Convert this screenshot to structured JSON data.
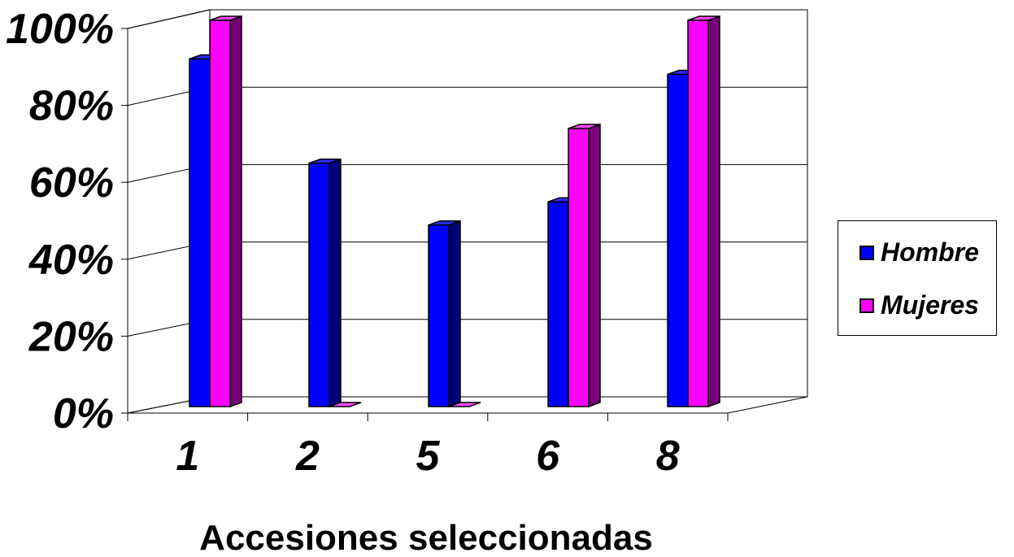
{
  "chart_data": {
    "type": "bar",
    "categories": [
      "1",
      "2",
      "5",
      "6",
      "8"
    ],
    "series": [
      {
        "name": "Hombre",
        "values": [
          90,
          63,
          47,
          53,
          86
        ]
      },
      {
        "name": "Mujeres",
        "values": [
          100,
          0,
          0,
          72,
          100
        ]
      }
    ],
    "ylim": [
      0,
      100
    ],
    "yticks": [
      "0%",
      "20%",
      "40%",
      "60%",
      "80%",
      "100%"
    ],
    "xlabel": "Accesiones seleccionadas",
    "ylabel": "",
    "grid": true,
    "legend_position": "right",
    "three_d": true
  },
  "colors": {
    "Hombre": {
      "front": "#0000FF",
      "side": "#00007A",
      "top": "#2B2BFF"
    },
    "Mujeres": {
      "front": "#FF00FF",
      "side": "#7A007A",
      "top": "#FF4DFF"
    },
    "grid": "#000000",
    "background": "#FFFFFF"
  }
}
